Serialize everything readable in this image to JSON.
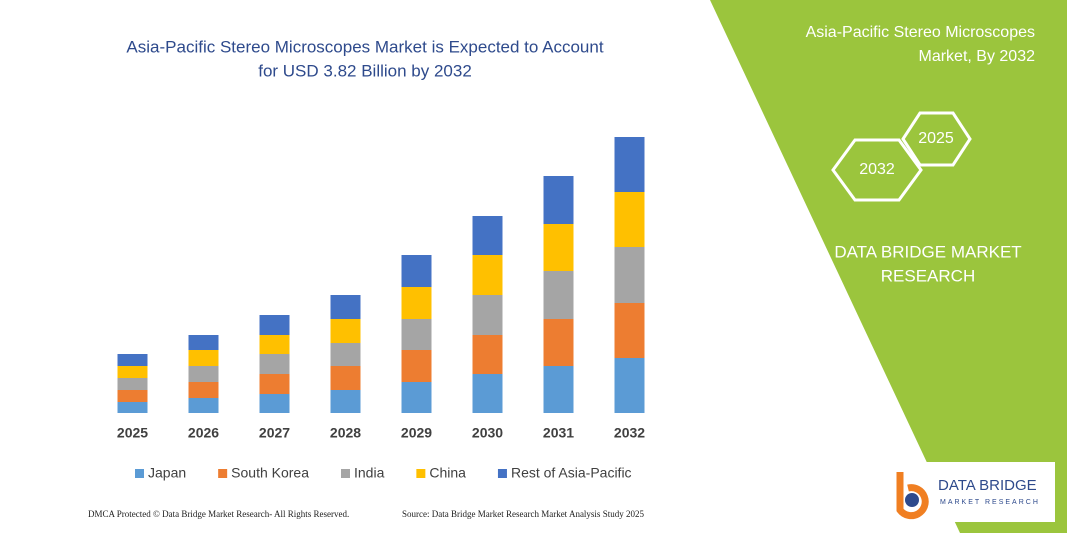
{
  "chart_data": {
    "type": "stacked_bar",
    "title": [
      "Asia-Pacific Stereo Microscopes Market is Expected to Account",
      "for USD 3.82 Billion by 2032"
    ],
    "categories": [
      "2025",
      "2026",
      "2027",
      "2028",
      "2029",
      "2030",
      "2031",
      "2032"
    ],
    "series": [
      {
        "name": "Japan",
        "color": "#5b9bd5",
        "values": [
          11,
          15,
          19,
          23,
          31,
          39,
          47,
          55
        ]
      },
      {
        "name": "South Korea",
        "color": "#ed7d31",
        "values": [
          12,
          16,
          20,
          24,
          32,
          39,
          47,
          55
        ]
      },
      {
        "name": "India",
        "color": "#a5a5a5",
        "values": [
          12,
          16,
          20,
          23,
          31,
          40,
          48,
          56
        ]
      },
      {
        "name": "China",
        "color": "#ffc000",
        "values": [
          12,
          16,
          19,
          24,
          32,
          40,
          47,
          55
        ]
      },
      {
        "name": "Rest of Asia-Pacific",
        "color": "#4472c4",
        "values": [
          12,
          15,
          20,
          24,
          32,
          39,
          48,
          55
        ]
      }
    ],
    "ylim": [
      0,
      276
    ]
  },
  "side_panel": {
    "heading": [
      "Asia-Pacific Stereo Microscopes",
      "Market, By 2032"
    ],
    "hexagons": [
      "2032",
      "2025"
    ],
    "brand": [
      "DATA BRIDGE MARKET",
      "RESEARCH"
    ]
  },
  "footer": {
    "left": "DMCA Protected © Data Bridge Market Research- All Rights Reserved.",
    "right": "Source: Data Bridge Market Research Market Analysis Study 2025"
  },
  "logo": {
    "name": "DATA BRIDGE",
    "tagline": "MARKET RESEARCH"
  }
}
